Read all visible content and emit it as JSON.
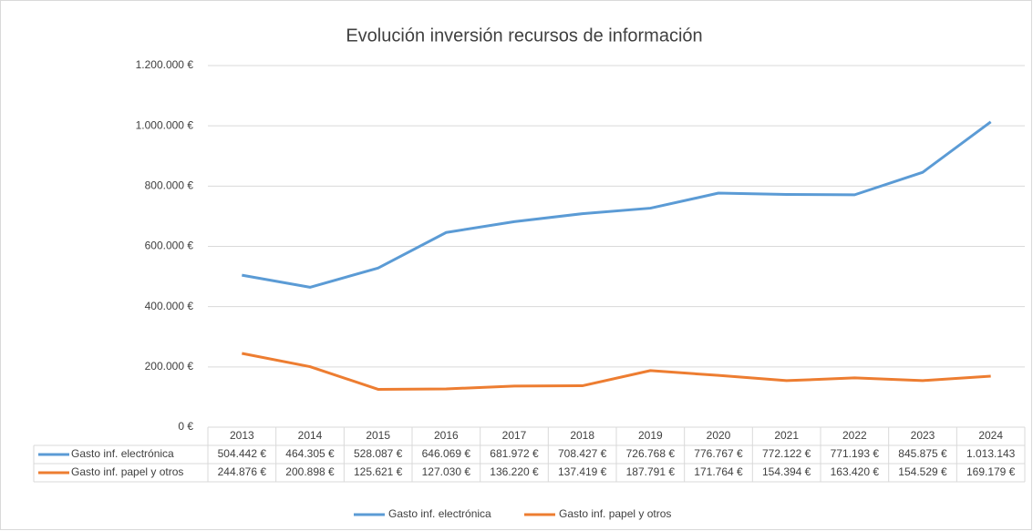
{
  "chart_data": {
    "type": "line",
    "title": "Evolución inversión recursos de información",
    "categories": [
      "2013",
      "2014",
      "2015",
      "2016",
      "2017",
      "2018",
      "2019",
      "2020",
      "2021",
      "2022",
      "2023",
      "2024"
    ],
    "series": [
      {
        "name": "Gasto inf. electrónica",
        "color": "#5b9bd5",
        "values": [
          504442,
          464305,
          528087,
          646069,
          681972,
          708427,
          726768,
          776767,
          772122,
          771193,
          845875,
          1013143
        ],
        "value_labels": [
          "504.442 €",
          "464.305 €",
          "528.087 €",
          "646.069 €",
          "681.972 €",
          "708.427 €",
          "726.768 €",
          "776.767 €",
          "772.122 €",
          "771.193 €",
          "845.875 €",
          "1.013.143"
        ]
      },
      {
        "name": "Gasto inf. papel y otros",
        "color": "#ed7d31",
        "values": [
          244876,
          200898,
          125621,
          127030,
          136220,
          137419,
          187791,
          171764,
          154394,
          163420,
          154529,
          169179
        ],
        "value_labels": [
          "244.876 €",
          "200.898 €",
          "125.621 €",
          "127.030 €",
          "136.220 €",
          "137.419 €",
          "187.791 €",
          "171.764 €",
          "154.394 €",
          "163.420 €",
          "154.529 €",
          "169.179 €"
        ]
      }
    ],
    "ylim": [
      0,
      1200000
    ],
    "yticks": [
      {
        "value": 0,
        "label": "0 €"
      },
      {
        "value": 200000,
        "label": "200.000 €"
      },
      {
        "value": 400000,
        "label": "400.000 €"
      },
      {
        "value": 600000,
        "label": "600.000 €"
      },
      {
        "value": 800000,
        "label": "800.000 €"
      },
      {
        "value": 1000000,
        "label": "1.000.000 €"
      },
      {
        "value": 1200000,
        "label": "1.200.000 €"
      }
    ],
    "grid": true,
    "legend": "bottom"
  }
}
